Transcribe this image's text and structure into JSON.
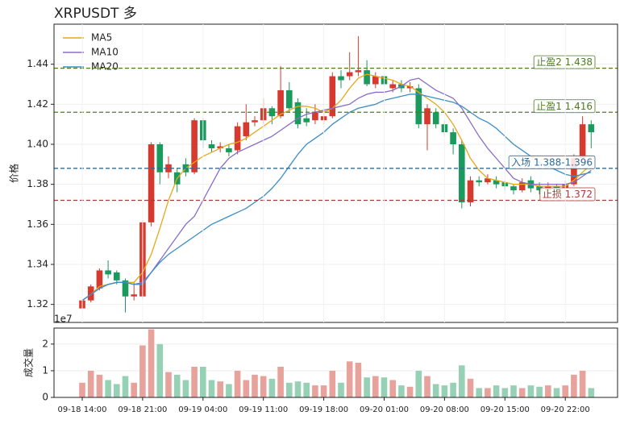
{
  "chart_data": [
    {
      "type": "candlestick",
      "title": "XRPUSDT 多",
      "ylabel": "价格",
      "up_color": "#d63a2f",
      "down_color": "#1a9a5c",
      "open": [
        1.318,
        1.322,
        1.328,
        1.337,
        1.336,
        1.332,
        1.324,
        1.324,
        1.361,
        1.4,
        1.386,
        1.386,
        1.39,
        1.386,
        1.412,
        1.4,
        1.398,
        1.398,
        1.397,
        1.404,
        1.411,
        1.412,
        1.418,
        1.414,
        1.427,
        1.421,
        1.413,
        1.412,
        1.412,
        1.414,
        1.434,
        1.434,
        1.436,
        1.437,
        1.43,
        1.434,
        1.428,
        1.43,
        1.428,
        1.428,
        1.41,
        1.416,
        1.41,
        1.406,
        1.4,
        1.371,
        1.382,
        1.381,
        1.382,
        1.381,
        1.379,
        1.377,
        1.382,
        1.379,
        1.377,
        1.379,
        1.378,
        1.38,
        1.393,
        1.41
      ],
      "high": [
        1.323,
        1.33,
        1.338,
        1.342,
        1.337,
        1.333,
        1.331,
        1.362,
        1.401,
        1.401,
        1.394,
        1.388,
        1.393,
        1.413,
        1.413,
        1.402,
        1.401,
        1.4,
        1.411,
        1.42,
        1.414,
        1.423,
        1.419,
        1.439,
        1.431,
        1.423,
        1.418,
        1.42,
        1.418,
        1.436,
        1.437,
        1.446,
        1.454,
        1.442,
        1.436,
        1.44,
        1.432,
        1.432,
        1.431,
        1.43,
        1.42,
        1.418,
        1.412,
        1.408,
        1.402,
        1.384,
        1.384,
        1.385,
        1.384,
        1.382,
        1.38,
        1.383,
        1.384,
        1.381,
        1.381,
        1.38,
        1.382,
        1.395,
        1.414,
        1.412
      ],
      "low": [
        1.317,
        1.321,
        1.327,
        1.333,
        1.33,
        1.316,
        1.322,
        1.323,
        1.359,
        1.38,
        1.383,
        1.376,
        1.384,
        1.385,
        1.398,
        1.396,
        1.396,
        1.394,
        1.395,
        1.402,
        1.409,
        1.41,
        1.41,
        1.413,
        1.416,
        1.408,
        1.409,
        1.41,
        1.41,
        1.413,
        1.428,
        1.432,
        1.434,
        1.429,
        1.428,
        1.428,
        1.426,
        1.426,
        1.426,
        1.408,
        1.397,
        1.408,
        1.404,
        1.395,
        1.368,
        1.369,
        1.379,
        1.38,
        1.378,
        1.377,
        1.375,
        1.376,
        1.376,
        1.375,
        1.376,
        1.376,
        1.377,
        1.379,
        1.391,
        1.398
      ],
      "close": [
        1.322,
        1.329,
        1.337,
        1.335,
        1.332,
        1.324,
        1.325,
        1.361,
        1.4,
        1.386,
        1.39,
        1.38,
        1.386,
        1.412,
        1.402,
        1.398,
        1.399,
        1.396,
        1.409,
        1.411,
        1.412,
        1.418,
        1.414,
        1.427,
        1.418,
        1.41,
        1.411,
        1.416,
        1.414,
        1.434,
        1.432,
        1.436,
        1.437,
        1.43,
        1.434,
        1.43,
        1.43,
        1.428,
        1.429,
        1.41,
        1.418,
        1.41,
        1.406,
        1.4,
        1.371,
        1.382,
        1.381,
        1.383,
        1.38,
        1.379,
        1.377,
        1.381,
        1.378,
        1.377,
        1.379,
        1.378,
        1.38,
        1.393,
        1.41,
        1.406
      ],
      "series": [
        {
          "name": "MA5",
          "color": "#e6a817",
          "values": [
            1.322,
            1.325,
            1.329,
            1.33,
            1.331,
            1.331,
            1.331,
            1.336,
            1.345,
            1.358,
            1.372,
            1.383,
            1.388,
            1.391,
            1.394,
            1.396,
            1.398,
            1.4,
            1.401,
            1.403,
            1.406,
            1.409,
            1.412,
            1.415,
            1.417,
            1.419,
            1.419,
            1.418,
            1.416,
            1.418,
            1.422,
            1.428,
            1.433,
            1.435,
            1.434,
            1.433,
            1.432,
            1.43,
            1.429,
            1.426,
            1.423,
            1.42,
            1.416,
            1.41,
            1.402,
            1.393,
            1.387,
            1.383,
            1.382,
            1.381,
            1.38,
            1.38,
            1.38,
            1.379,
            1.379,
            1.379,
            1.379,
            1.382,
            1.386,
            1.39
          ]
        },
        {
          "name": "MA10",
          "color": "#8a6cc8",
          "values": [
            1.322,
            1.325,
            1.328,
            1.33,
            1.331,
            1.331,
            1.33,
            1.331,
            1.336,
            1.342,
            1.348,
            1.354,
            1.36,
            1.364,
            1.372,
            1.38,
            1.388,
            1.393,
            1.396,
            1.398,
            1.4,
            1.402,
            1.404,
            1.407,
            1.41,
            1.413,
            1.415,
            1.416,
            1.417,
            1.418,
            1.419,
            1.42,
            1.423,
            1.425,
            1.426,
            1.426,
            1.427,
            1.429,
            1.432,
            1.433,
            1.43,
            1.427,
            1.425,
            1.423,
            1.418,
            1.411,
            1.404,
            1.398,
            1.393,
            1.388,
            1.383,
            1.381,
            1.38,
            1.38,
            1.38,
            1.38,
            1.38,
            1.381,
            1.384,
            1.387
          ]
        },
        {
          "name": "MA20",
          "color": "#3c8dc8",
          "values": [
            1.322,
            1.325,
            1.328,
            1.33,
            1.331,
            1.331,
            1.33,
            1.33,
            1.336,
            1.341,
            1.345,
            1.348,
            1.351,
            1.354,
            1.357,
            1.36,
            1.362,
            1.364,
            1.366,
            1.368,
            1.371,
            1.374,
            1.378,
            1.383,
            1.389,
            1.395,
            1.4,
            1.403,
            1.406,
            1.41,
            1.413,
            1.416,
            1.418,
            1.419,
            1.42,
            1.422,
            1.423,
            1.424,
            1.425,
            1.425,
            1.424,
            1.423,
            1.422,
            1.421,
            1.419,
            1.416,
            1.413,
            1.411,
            1.408,
            1.404,
            1.4,
            1.397,
            1.394,
            1.391,
            1.389,
            1.387,
            1.385,
            1.384,
            1.385,
            1.386
          ]
        }
      ],
      "levels": [
        {
          "label": "止盈2 1.438",
          "value": 1.438,
          "color": "#4e7a1e"
        },
        {
          "label": "止盈1 1.416",
          "value": 1.416,
          "color": "#4e7a1e"
        },
        {
          "label": "入场 1.388-1.396",
          "value": 1.388,
          "color": "#2f6b9a"
        },
        {
          "label": "止损 1.372",
          "value": 1.372,
          "color": "#a83a32"
        }
      ],
      "ylim": [
        1.311,
        1.46
      ],
      "yticks": [
        1.32,
        1.34,
        1.36,
        1.38,
        {
          "value": 1.4,
          "label": "1.40"
        },
        1.42,
        1.44
      ],
      "legend": "upper left",
      "grid": true
    },
    {
      "type": "bar",
      "ylabel": "成交量",
      "offset_label": "1e7",
      "up_color": "#e8a29c",
      "down_color": "#96d1b5",
      "categories": [
        "09-18 14:00",
        null,
        null,
        null,
        null,
        null,
        null,
        "09-18 21:00",
        null,
        null,
        null,
        null,
        null,
        null,
        "09-19 04:00",
        null,
        null,
        null,
        null,
        null,
        null,
        "09-19 11:00",
        null,
        null,
        null,
        null,
        null,
        null,
        "09-19 18:00",
        null,
        null,
        null,
        null,
        null,
        null,
        "09-20 01:00",
        null,
        null,
        null,
        null,
        null,
        null,
        "09-20 08:00",
        null,
        null,
        null,
        null,
        null,
        null,
        "09-20 15:00",
        null,
        null,
        null,
        null,
        null,
        null,
        "09-20 22:00",
        null,
        null,
        null
      ],
      "values": [
        0.55,
        1.0,
        0.85,
        0.65,
        0.5,
        0.8,
        0.55,
        1.95,
        2.55,
        2.0,
        0.95,
        0.85,
        0.65,
        1.15,
        1.15,
        0.65,
        0.6,
        0.5,
        1.0,
        0.65,
        0.85,
        0.8,
        0.7,
        1.15,
        0.55,
        0.6,
        0.55,
        0.45,
        0.45,
        1.0,
        0.55,
        1.35,
        1.3,
        0.75,
        0.8,
        0.75,
        0.65,
        0.45,
        0.4,
        1.0,
        0.8,
        0.5,
        0.45,
        0.55,
        1.2,
        0.7,
        0.35,
        0.35,
        0.45,
        0.35,
        0.45,
        0.35,
        0.45,
        0.4,
        0.45,
        0.35,
        0.45,
        0.85,
        1.0,
        0.35
      ],
      "ylim": [
        0,
        2.6
      ],
      "yticks": [
        0,
        1,
        2
      ],
      "grid": true
    }
  ]
}
